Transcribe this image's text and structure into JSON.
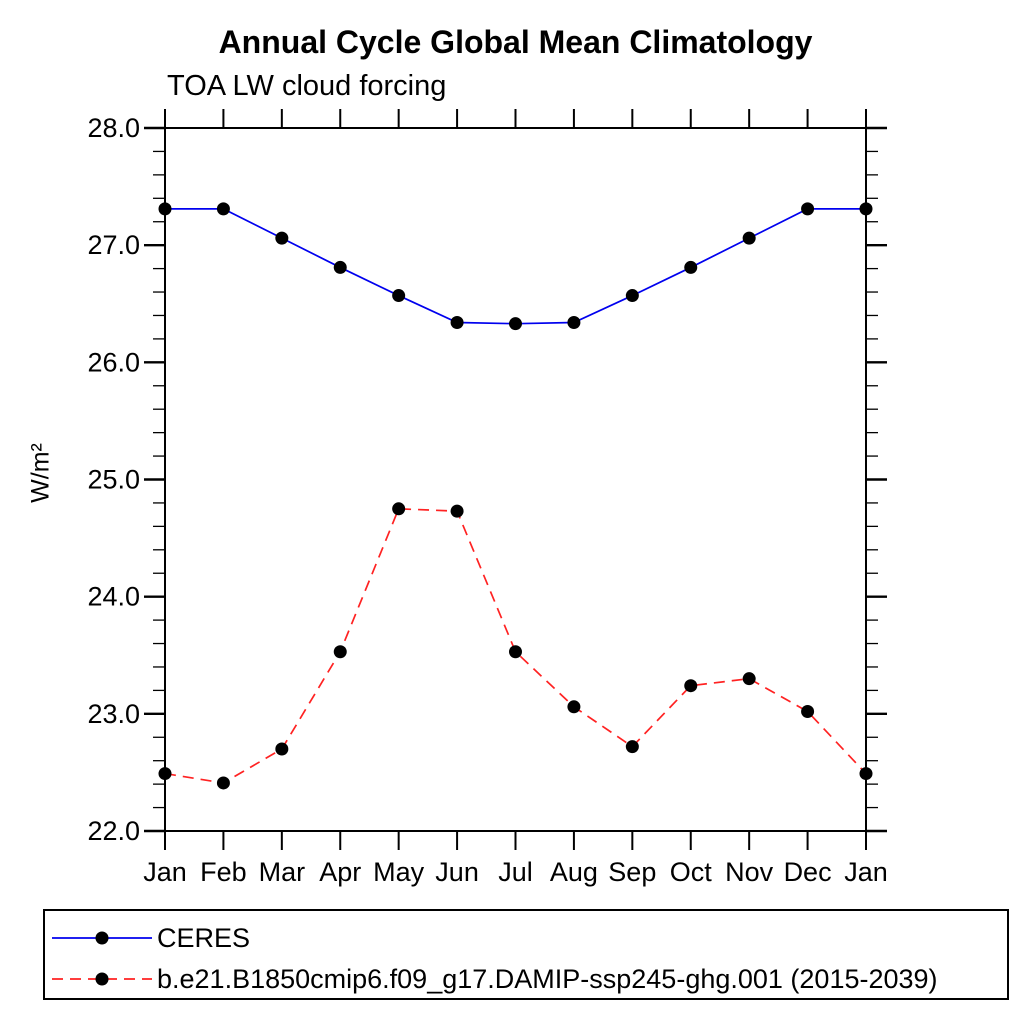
{
  "chart_data": {
    "type": "line",
    "title": "Annual Cycle Global Mean Climatology",
    "subtitle": "TOA LW cloud forcing",
    "ylabel": "W/m²",
    "xlabel": "",
    "ylim": [
      22.0,
      28.0
    ],
    "ytick_major_interval": 1.0,
    "ytick_minor_interval": 0.2,
    "ytick_labels": [
      "22.0",
      "23.0",
      "24.0",
      "25.0",
      "26.0",
      "27.0",
      "28.0"
    ],
    "grid": false,
    "legend_position": "bottom",
    "categories": [
      "Jan",
      "Feb",
      "Mar",
      "Apr",
      "May",
      "Jun",
      "Jul",
      "Aug",
      "Sep",
      "Oct",
      "Nov",
      "Dec",
      "Jan"
    ],
    "series": [
      {
        "name": "CERES",
        "color": "#0000ee",
        "line_style": "solid",
        "marker": "filled-black-circle",
        "values": [
          27.31,
          27.31,
          27.06,
          26.81,
          26.57,
          26.34,
          26.33,
          26.34,
          26.57,
          26.81,
          27.06,
          27.31,
          27.31
        ]
      },
      {
        "name": "b.e21.B1850cmip6.f09_g17.DAMIP-ssp245-ghg.001 (2015-2039)",
        "color": "#ff2222",
        "line_style": "dashed",
        "marker": "filled-black-circle",
        "values": [
          22.49,
          22.41,
          22.7,
          23.53,
          24.75,
          24.73,
          23.53,
          23.06,
          22.72,
          23.24,
          23.3,
          23.02,
          22.49
        ]
      }
    ]
  },
  "colors": {
    "axis": "#000000",
    "marker": "#000000",
    "background": "#ffffff"
  }
}
